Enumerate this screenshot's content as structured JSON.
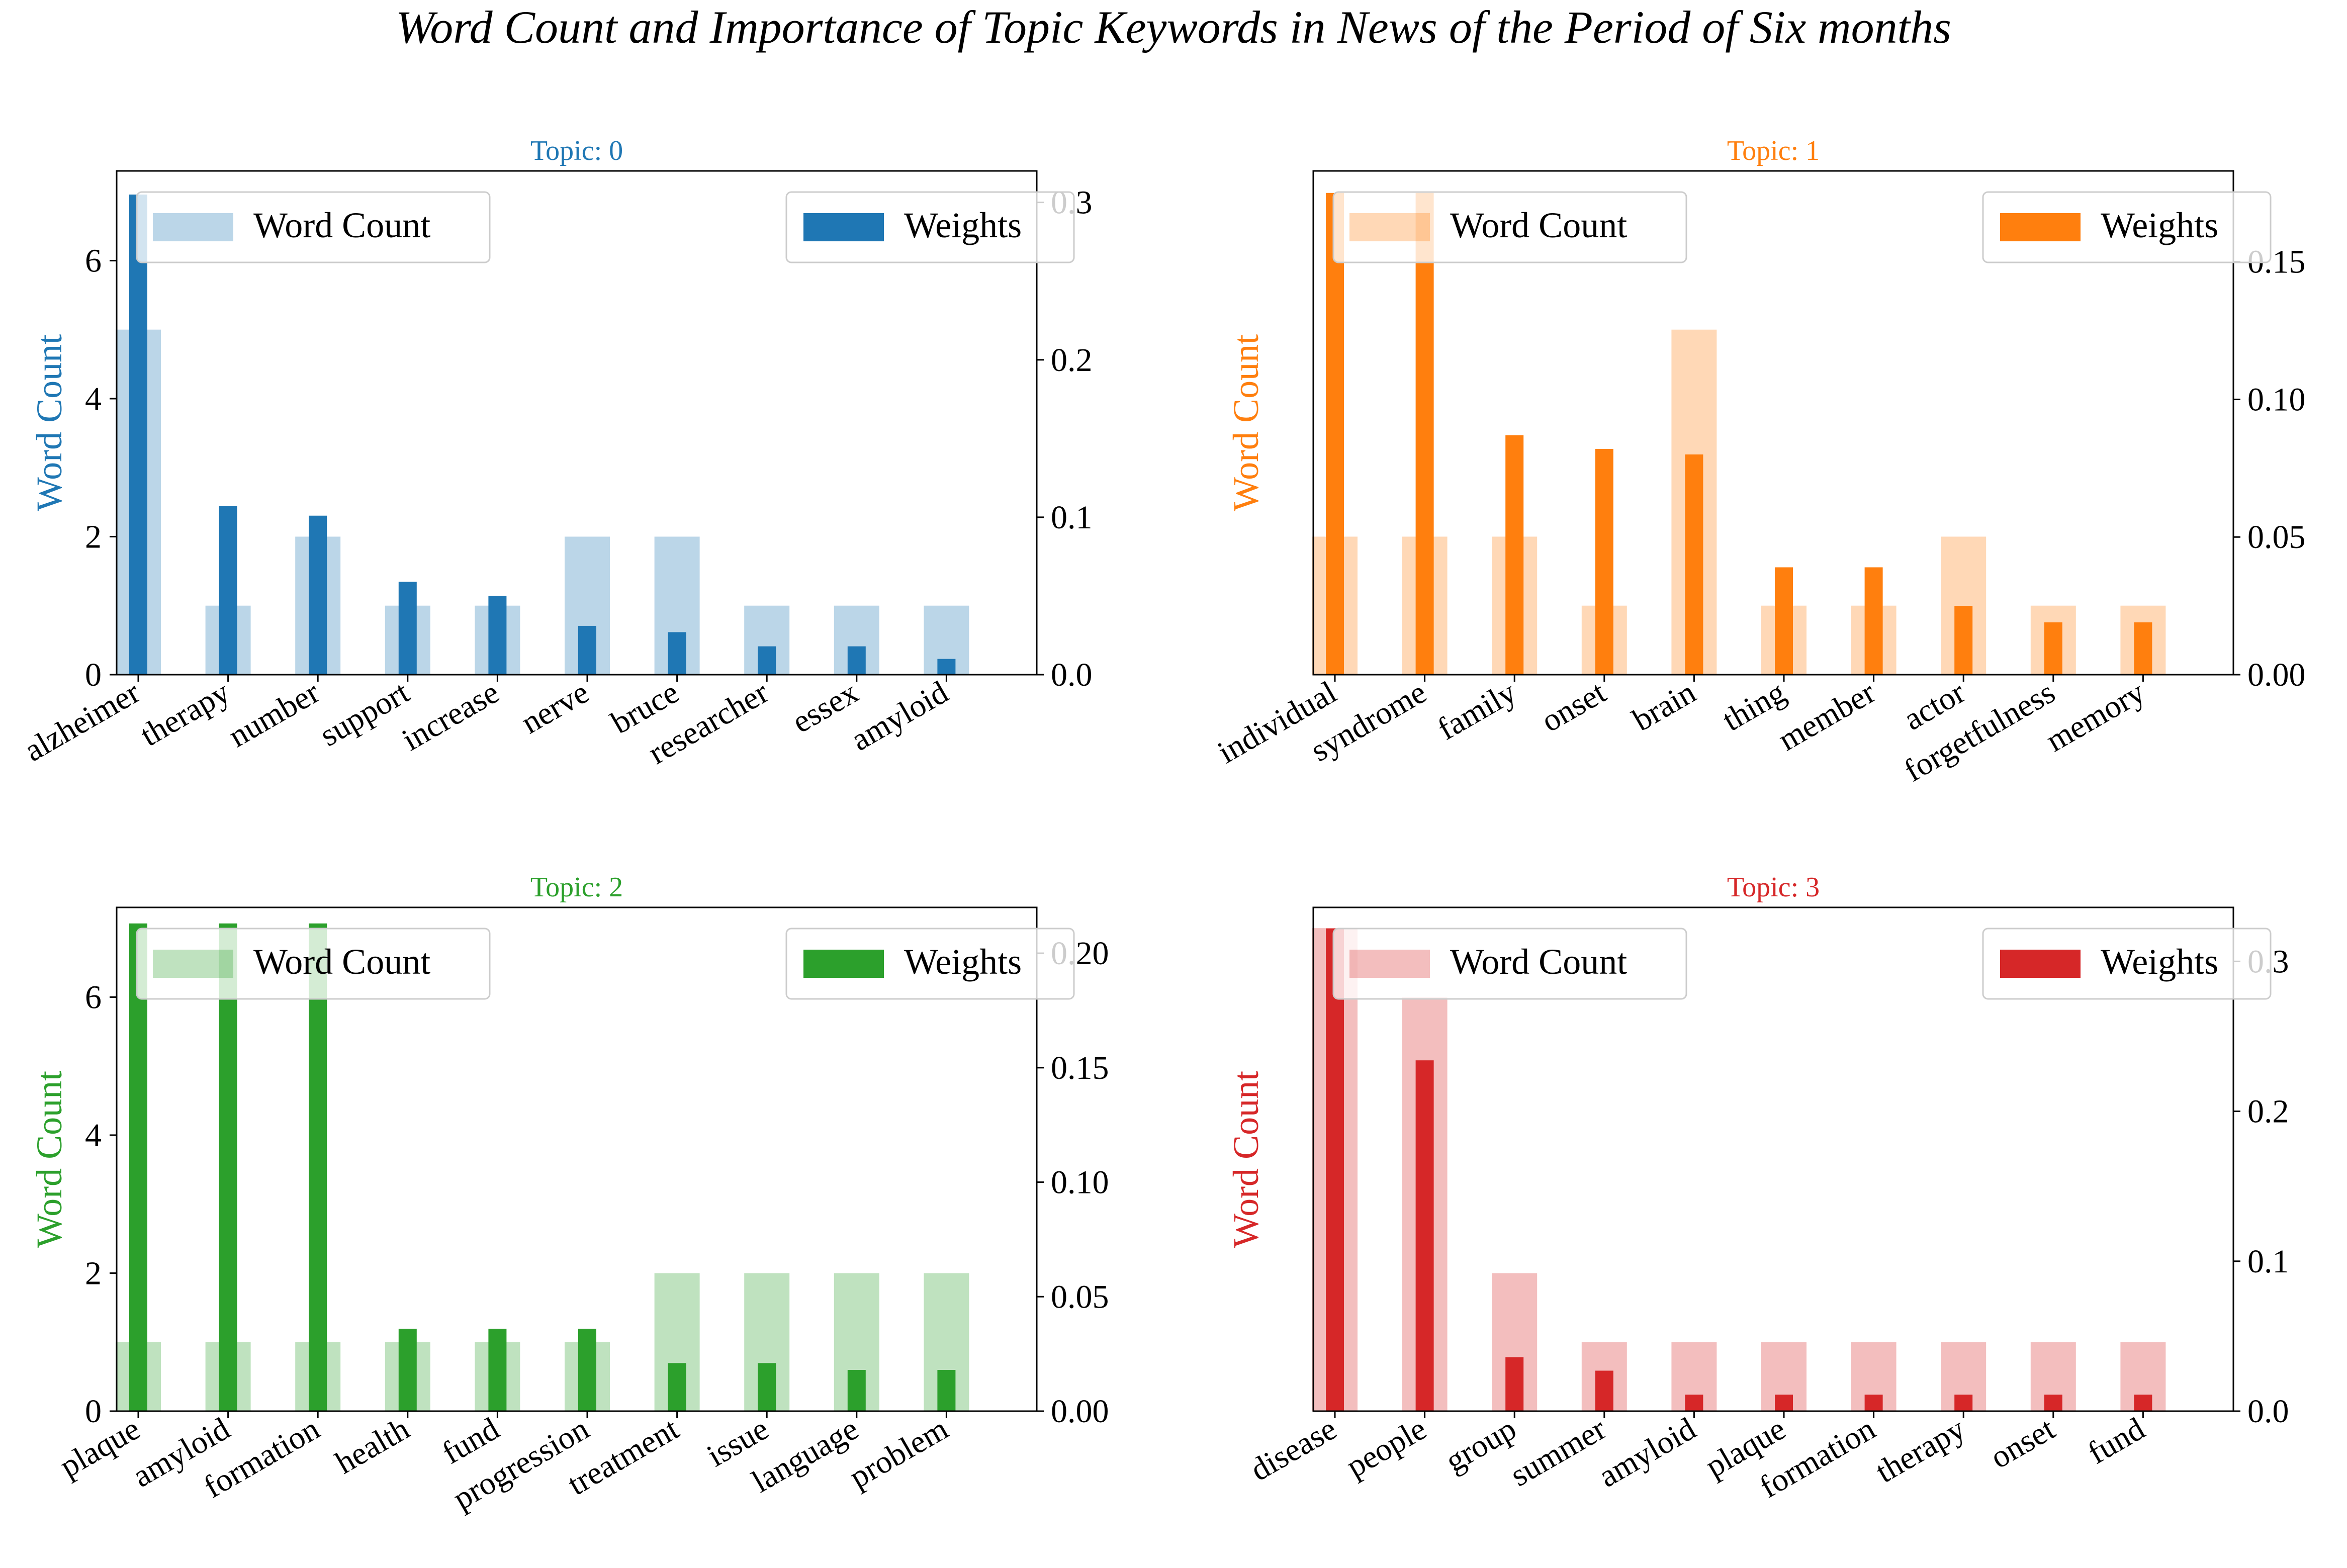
{
  "figure": {
    "title": "Word Count and Importance of Topic Keywords in News of the Period of Six months"
  },
  "legend": {
    "count_label": "Word Count",
    "weight_label": "Weights"
  },
  "chart_data": [
    {
      "type": "bar",
      "title": "Topic: 0",
      "color": "#1f77b4",
      "ylabel": "Word Count",
      "categories": [
        "alzheimer",
        "therapy",
        "number",
        "support",
        "increase",
        "nerve",
        "bruce",
        "researcher",
        "essex",
        "amyloid"
      ],
      "series": [
        {
          "name": "Word Count",
          "axis": "left",
          "values": [
            5,
            1,
            2,
            1,
            1,
            2,
            2,
            1,
            1,
            1
          ]
        },
        {
          "name": "Weights",
          "axis": "right",
          "values": [
            0.305,
            0.107,
            0.101,
            0.059,
            0.05,
            0.031,
            0.027,
            0.018,
            0.018,
            0.01
          ]
        }
      ],
      "ylim": [
        0,
        7.3
      ],
      "yticks": [
        0,
        2,
        4,
        6
      ],
      "y2lim": [
        0,
        0.32
      ],
      "y2ticks": [
        0.0,
        0.1,
        0.2,
        0.3
      ],
      "y2ticklabels": [
        "0.0",
        "0.1",
        "0.2",
        "0.3"
      ],
      "grid": false,
      "legend": [
        "top-left",
        "top-right"
      ]
    },
    {
      "type": "bar",
      "title": "Topic: 1",
      "color": "#ff7f0e",
      "ylabel": "Word Count",
      "categories": [
        "individual",
        "syndrome",
        "family",
        "onset",
        "brain",
        "thing",
        "member",
        "actor",
        "forgetfulness",
        "memory"
      ],
      "series": [
        {
          "name": "Word Count",
          "axis": "left",
          "values": [
            2,
            2,
            2,
            1,
            5,
            1,
            1,
            2,
            1,
            1
          ]
        },
        {
          "name": "Weights",
          "axis": "right",
          "values": [
            0.175,
            0.175,
            0.087,
            0.082,
            0.08,
            0.039,
            0.039,
            0.025,
            0.019,
            0.019
          ]
        }
      ],
      "ylim": [
        0,
        7.3
      ],
      "yticks": [],
      "y2lim": [
        0,
        0.183
      ],
      "y2ticks": [
        0.0,
        0.05,
        0.1,
        0.15
      ],
      "y2ticklabels": [
        "0.00",
        "0.05",
        "0.10",
        "0.15"
      ],
      "grid": false,
      "legend": [
        "top-left",
        "top-right"
      ]
    },
    {
      "type": "bar",
      "title": "Topic: 2",
      "color": "#2ca02c",
      "ylabel": "Word Count",
      "categories": [
        "plaque",
        "amyloid",
        "formation",
        "health",
        "fund",
        "progression",
        "treatment",
        "issue",
        "language",
        "problem"
      ],
      "series": [
        {
          "name": "Word Count",
          "axis": "left",
          "values": [
            1,
            1,
            1,
            1,
            1,
            1,
            2,
            2,
            2,
            2
          ]
        },
        {
          "name": "Weights",
          "axis": "right",
          "values": [
            0.213,
            0.213,
            0.213,
            0.036,
            0.036,
            0.036,
            0.021,
            0.021,
            0.018,
            0.018
          ]
        }
      ],
      "ylim": [
        0,
        7.3
      ],
      "yticks": [
        0,
        2,
        4,
        6
      ],
      "y2lim": [
        0,
        0.22
      ],
      "y2ticks": [
        0.0,
        0.05,
        0.1,
        0.15,
        0.2
      ],
      "y2ticklabels": [
        "0.00",
        "0.05",
        "0.10",
        "0.15",
        "0.20"
      ],
      "grid": false,
      "legend": [
        "top-left",
        "top-right"
      ]
    },
    {
      "type": "bar",
      "title": "Topic: 3",
      "color": "#d62728",
      "ylabel": "Word Count",
      "categories": [
        "disease",
        "people",
        "group",
        "summer",
        "amyloid",
        "plaque",
        "formation",
        "therapy",
        "onset",
        "fund"
      ],
      "series": [
        {
          "name": "Word Count",
          "axis": "left",
          "values": [
            7,
            6,
            2,
            1,
            1,
            1,
            1,
            1,
            1,
            1
          ]
        },
        {
          "name": "Weights",
          "axis": "right",
          "values": [
            0.322,
            0.234,
            0.036,
            0.027,
            0.011,
            0.011,
            0.011,
            0.011,
            0.011,
            0.011
          ]
        }
      ],
      "ylim": [
        0,
        7.3
      ],
      "yticks": [],
      "y2lim": [
        0,
        0.336
      ],
      "y2ticks": [
        0.0,
        0.1,
        0.2,
        0.3
      ],
      "y2ticklabels": [
        "0.0",
        "0.1",
        "0.2",
        "0.3"
      ],
      "grid": false,
      "legend": [
        "top-left",
        "top-right"
      ]
    }
  ]
}
